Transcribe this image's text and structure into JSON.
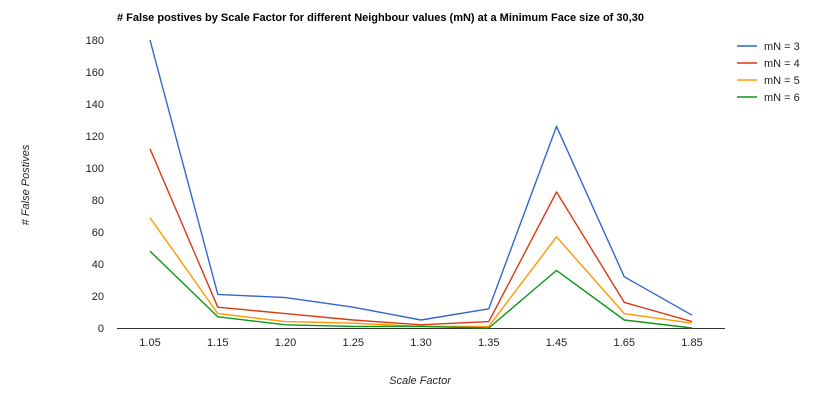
{
  "chart_data": {
    "type": "line",
    "title": "# False postives by Scale Factor for different Neighbour values (mN) at a Minimum Face size of 30,30",
    "xlabel": "Scale Factor",
    "ylabel": "# False Postives",
    "categories": [
      "1.05",
      "1.15",
      "1.20",
      "1.25",
      "1.30",
      "1.35",
      "1.45",
      "1.65",
      "1.85"
    ],
    "ylim": [
      0,
      180
    ],
    "yticks": [
      0,
      20,
      40,
      60,
      80,
      100,
      120,
      140,
      160,
      180
    ],
    "grid": false,
    "legend_position": "right",
    "series": [
      {
        "name": "mN = 3",
        "color": "#3366cc",
        "values": [
          180,
          21,
          19,
          13,
          5,
          12,
          126,
          32,
          8
        ]
      },
      {
        "name": "mN = 4",
        "color": "#dc3912",
        "values": [
          112,
          13,
          9,
          5,
          2,
          4,
          85,
          16,
          4
        ]
      },
      {
        "name": "mN = 5",
        "color": "#ff9900",
        "values": [
          69,
          9,
          4,
          3,
          1,
          1,
          57,
          9,
          3
        ]
      },
      {
        "name": "mN = 6",
        "color": "#109618",
        "values": [
          48,
          7,
          2,
          1,
          1,
          0,
          36,
          5,
          0
        ]
      }
    ]
  }
}
